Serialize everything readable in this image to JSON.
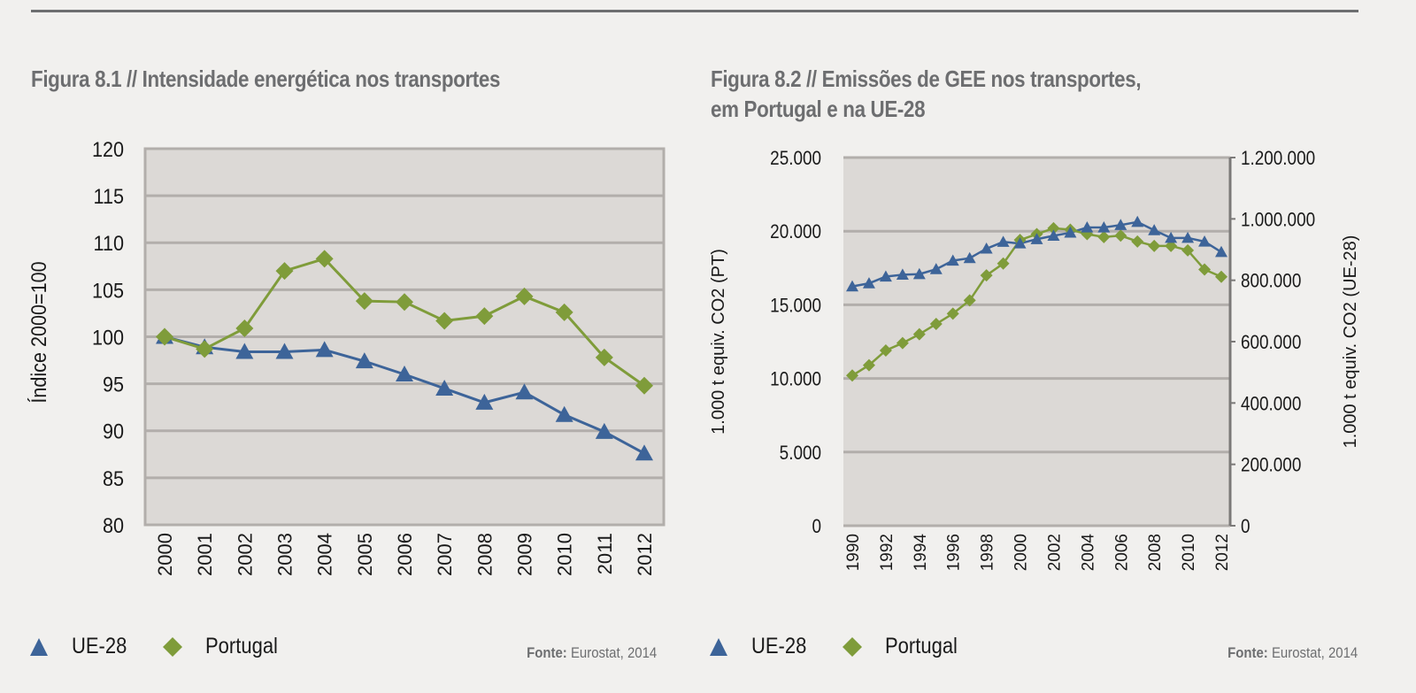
{
  "figures": [
    {
      "title": "Figura 8.1 // Intensidade energética nos transportes",
      "legend": [
        "UE-28",
        "Portugal"
      ],
      "source_label": "Fonte:",
      "source_text": "Eurostat, 2014"
    },
    {
      "title_line1": "Figura 8.2 // Emissões de GEE nos transportes,",
      "title_line2": "em Portugal e na UE-28",
      "legend": [
        "UE-28",
        "Portugal"
      ],
      "source_label": "Fonte:",
      "source_text": "Eurostat, 2014"
    }
  ],
  "colors": {
    "ue28": "#3d6499",
    "portugal": "#7f9c3a",
    "plot_bg": "#dcd9d6",
    "grid": "#b2aeab",
    "title": "#6d6e70"
  },
  "chart_data": [
    {
      "type": "line",
      "title": "Figura 8.1 // Intensidade energética nos transportes",
      "xlabel": "",
      "ylabel": "Índice 2000=100",
      "ylim": [
        80,
        120
      ],
      "yticks": [
        "80",
        "85",
        "90",
        "95",
        "100",
        "105",
        "110",
        "115",
        "120"
      ],
      "x": [
        "2000",
        "2001",
        "2002",
        "2003",
        "2004",
        "2005",
        "2006",
        "2007",
        "2008",
        "2009",
        "2010",
        "2011",
        "2012"
      ],
      "grid": true,
      "legend_position": "bottom-left",
      "series": [
        {
          "name": "UE-28",
          "marker": "triangle",
          "values": [
            100,
            98.9,
            98.4,
            98.4,
            98.6,
            97.4,
            96.0,
            94.5,
            93.0,
            94.1,
            91.7,
            89.9,
            87.6
          ]
        },
        {
          "name": "Portugal",
          "marker": "diamond",
          "values": [
            100,
            98.7,
            100.9,
            107.0,
            108.3,
            103.8,
            103.7,
            101.7,
            102.2,
            104.3,
            102.6,
            97.8,
            94.8
          ]
        }
      ]
    },
    {
      "type": "line",
      "title": "Figura 8.2 // Emissões de GEE nos transportes, em Portugal e na UE-28",
      "xlabel": "",
      "ylabel": "1.000 t equiv. CO2 (PT)",
      "ylabel_right": "1.000 t equiv. CO2 (UE-28)",
      "ylim": [
        0,
        25000
      ],
      "ylim_right": [
        0,
        1200000
      ],
      "yticks": [
        "0",
        "5.000",
        "10.000",
        "15.000",
        "20.000",
        "25.000"
      ],
      "yticks_right": [
        "0",
        "200.000",
        "400.000",
        "600.000",
        "800.000",
        "1.000.000",
        "1.200.000"
      ],
      "x": [
        "1990",
        "1991",
        "1992",
        "1993",
        "1994",
        "1995",
        "1996",
        "1997",
        "1998",
        "1999",
        "2000",
        "2001",
        "2002",
        "2003",
        "2004",
        "2005",
        "2006",
        "2007",
        "2008",
        "2009",
        "2010",
        "2011",
        "2012"
      ],
      "xtick_labels": [
        "1990",
        "1992",
        "1994",
        "1996",
        "1998",
        "2000",
        "2002",
        "2004",
        "2006",
        "2008",
        "2010",
        "2012"
      ],
      "grid": true,
      "legend_position": "bottom-left",
      "series": [
        {
          "name": "UE-28",
          "axis": "right",
          "marker": "triangle",
          "values": [
            780000,
            790000,
            812000,
            818000,
            820000,
            836000,
            864000,
            872000,
            903000,
            925000,
            920000,
            934000,
            945000,
            955000,
            972000,
            972000,
            980000,
            990000,
            963000,
            938000,
            938000,
            926000,
            892000
          ]
        },
        {
          "name": "Portugal",
          "axis": "left",
          "marker": "diamond",
          "values": [
            10200,
            10900,
            11900,
            12400,
            13000,
            13700,
            14400,
            15300,
            17000,
            17800,
            19400,
            19800,
            20200,
            20100,
            19800,
            19600,
            19700,
            19300,
            19000,
            19000,
            18700,
            17400,
            16900
          ]
        }
      ]
    }
  ]
}
